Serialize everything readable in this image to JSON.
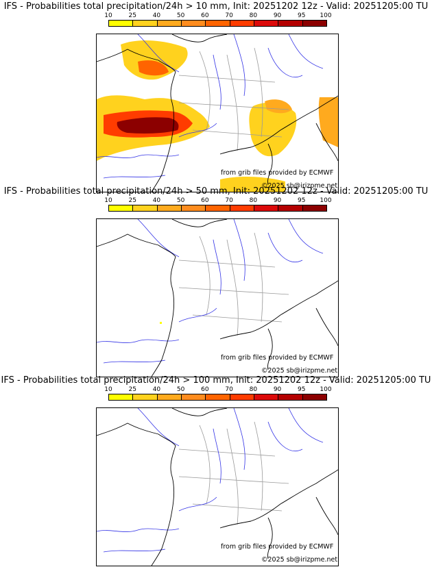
{
  "panels": [
    {
      "title": "IFS - Probabilities total precipitation/24h > 10 mm, Init: 20251202 12z - Valid: 20251205:00 TU"
    },
    {
      "title": "IFS - Probabilities total precipitation/24h > 50 mm, Init: 20251202 12z - Valid: 20251205:00 TU"
    },
    {
      "title": "IFS - Probabilities total precipitation/24h > 100 mm, Init: 20251202 12z - Valid: 20251205:00 TU"
    }
  ],
  "colorbar": {
    "ticks": [
      "10",
      "25",
      "40",
      "50",
      "60",
      "70",
      "80",
      "90",
      "95",
      "100"
    ],
    "colors": [
      "#ffff00",
      "#ffd21e",
      "#ffaa1e",
      "#ff8c1e",
      "#ff6400",
      "#ff3c00",
      "#dc0a0a",
      "#b40000",
      "#8c0000"
    ]
  },
  "credits": {
    "source": "from grib files provided by ECMWF",
    "copyright": "©2025 sb@irizpme.net"
  },
  "map_layers": {
    "coast_color": "#000000",
    "river_color": "#3232e6",
    "border_color": "#999999"
  }
}
